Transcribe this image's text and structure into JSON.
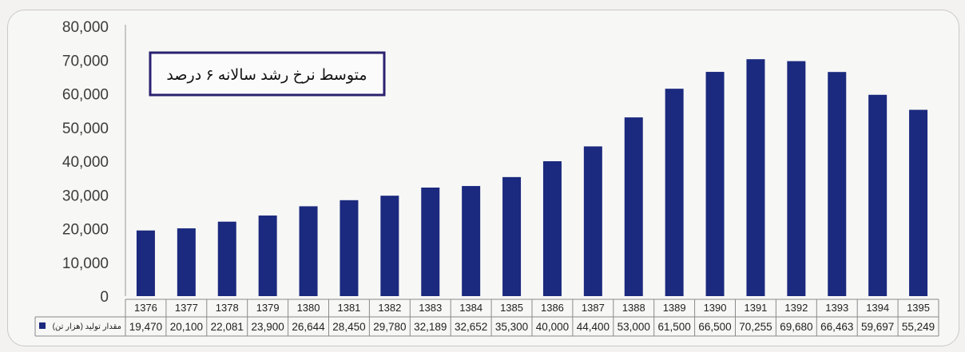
{
  "chart_data": {
    "type": "bar",
    "title": "",
    "xlabel": "",
    "ylabel": "",
    "ylim": [
      0,
      80000
    ],
    "y_ticks": [
      "0",
      "10,000",
      "20,000",
      "30,000",
      "40,000",
      "50,000",
      "60,000",
      "70,000",
      "80,000"
    ],
    "y_tick_values": [
      0,
      10000,
      20000,
      30000,
      40000,
      50000,
      60000,
      70000,
      80000
    ],
    "categories": [
      "1376",
      "1377",
      "1378",
      "1379",
      "1380",
      "1381",
      "1382",
      "1383",
      "1384",
      "1385",
      "1386",
      "1387",
      "1388",
      "1389",
      "1390",
      "1391",
      "1392",
      "1393",
      "1394",
      "1395"
    ],
    "series": [
      {
        "name": "مقدار تولید (هزار تن)",
        "values": [
          19470,
          20100,
          22081,
          23900,
          26644,
          28450,
          29780,
          32189,
          32652,
          35300,
          40000,
          44400,
          53000,
          61500,
          66500,
          70255,
          69680,
          66463,
          59697,
          55249
        ],
        "labels": [
          "19,470",
          "20,100",
          "22,081",
          "23,900",
          "26,644",
          "28,450",
          "29,780",
          "32,189",
          "32,652",
          "35,300",
          "40,000",
          "44,400",
          "53,000",
          "61,500",
          "66,500",
          "70,255",
          "69,680",
          "66,463",
          "59,697",
          "55,249"
        ],
        "color": "#1b2a7e"
      }
    ],
    "annotation": "متوسط نرخ رشد سالانه ۶ درصد",
    "grid": false,
    "legend_placement": "data-table-left",
    "data_table": true
  },
  "colors": {
    "bar": "#1b2a7e",
    "annotation_border": "#2a2170",
    "table_border": "#8a8a8a"
  }
}
